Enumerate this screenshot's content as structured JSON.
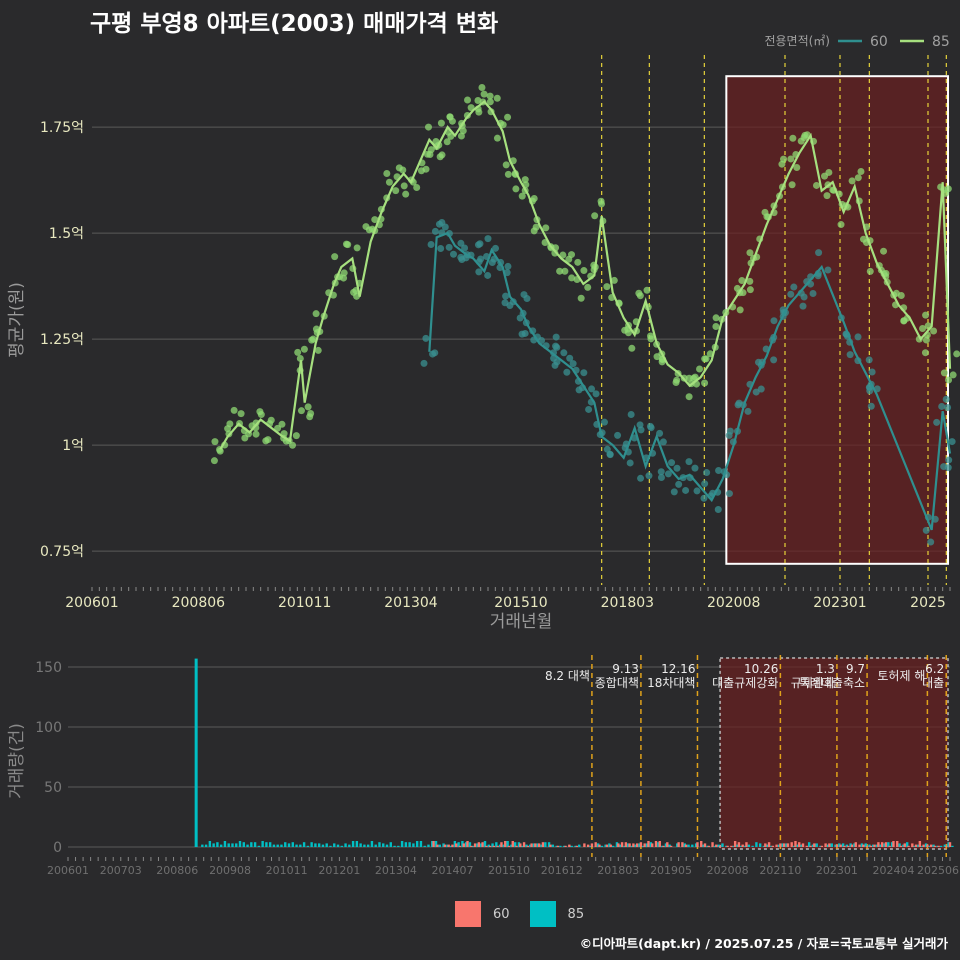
{
  "title": "구평 부영8 아파트(2003) 매매가격 변화",
  "footer": "©디아파트(dapt.kr) / 2025.07.25 / 자료=국토교통부 실거래가",
  "colors": {
    "background": "#2a2a2c",
    "series_60_line": "#2f8f8f",
    "series_60_point": "#3a9090",
    "series_85_line": "#a6e07f",
    "series_85_point": "#8fd973",
    "policy_line_top": "#e6d33a",
    "policy_line_bottom": "#e0a21b",
    "highlight_fill": "#6b1f1f",
    "vol_60": "#f8766d",
    "vol_85": "#00bfc4"
  },
  "chart_data": [
    {
      "type": "scatter",
      "title": "",
      "xlabel": "거래년월",
      "ylabel": "평균가(원)",
      "x_ticks": [
        "200601",
        "200806",
        "201011",
        "201304",
        "201510",
        "201803",
        "202008",
        "202301",
        "2025"
      ],
      "y_ticks": [
        {
          "value": 0.75,
          "label": "0.75억"
        },
        {
          "value": 1.0,
          "label": "1억"
        },
        {
          "value": 1.25,
          "label": "1.25억"
        },
        {
          "value": 1.5,
          "label": "1.5억"
        },
        {
          "value": 1.75,
          "label": "1.75억"
        }
      ],
      "ylim": [
        0.67,
        1.92
      ],
      "xlim": [
        "2006-01",
        "2025-07"
      ],
      "grid": true,
      "legend": {
        "title": "전용면적(㎡)",
        "position": "top-right",
        "entries": [
          {
            "name": "60",
            "color": "#2f8f8f"
          },
          {
            "name": "85",
            "color": "#a6e07f"
          }
        ]
      },
      "highlight": {
        "x0": "2020-06",
        "x1": "2025-07",
        "y0": 0.72,
        "y1": 1.87
      },
      "policy_dates": [
        "2017-08",
        "2018-09",
        "2019-12",
        "2021-10",
        "2023-01",
        "2023-09",
        "2025-01",
        "2025-06"
      ],
      "series": [
        {
          "name": "85",
          "x": [
            "2008-12",
            "2009-02",
            "2009-05",
            "2009-08",
            "2009-11",
            "2010-02",
            "2010-05",
            "2010-07",
            "2010-10",
            "2010-11",
            "2011-02",
            "2011-04",
            "2011-07",
            "2011-09",
            "2011-12",
            "2012-02",
            "2012-05",
            "2012-08",
            "2012-11",
            "2013-02",
            "2013-04",
            "2013-07",
            "2013-09",
            "2013-11",
            "2014-02",
            "2014-04",
            "2014-07",
            "2014-09",
            "2014-12",
            "2015-02",
            "2015-05",
            "2015-07",
            "2015-10",
            "2015-12",
            "2016-03",
            "2016-06",
            "2016-09",
            "2016-12",
            "2017-03",
            "2017-06",
            "2017-08",
            "2017-11",
            "2018-02",
            "2018-05",
            "2018-08",
            "2018-11",
            "2019-02",
            "2019-05",
            "2019-08",
            "2019-11",
            "2020-02",
            "2020-05",
            "2020-08",
            "2020-11",
            "2021-02",
            "2021-05",
            "2021-08",
            "2021-11",
            "2022-02",
            "2022-05",
            "2022-08",
            "2022-11",
            "2023-02",
            "2023-05",
            "2023-08",
            "2023-11",
            "2024-02",
            "2024-05",
            "2024-08",
            "2024-11",
            "2025-02",
            "2025-05",
            "2025-07"
          ],
          "y": [
            0.99,
            1.02,
            1.05,
            1.03,
            1.06,
            1.04,
            1.02,
            1.01,
            1.2,
            1.1,
            1.24,
            1.3,
            1.38,
            1.42,
            1.44,
            1.35,
            1.48,
            1.55,
            1.61,
            1.64,
            1.62,
            1.68,
            1.72,
            1.7,
            1.75,
            1.73,
            1.77,
            1.79,
            1.81,
            1.79,
            1.74,
            1.67,
            1.62,
            1.59,
            1.52,
            1.47,
            1.44,
            1.42,
            1.38,
            1.4,
            1.54,
            1.36,
            1.3,
            1.26,
            1.34,
            1.24,
            1.19,
            1.17,
            1.14,
            1.16,
            1.2,
            1.3,
            1.34,
            1.38,
            1.45,
            1.52,
            1.58,
            1.64,
            1.69,
            1.73,
            1.6,
            1.62,
            1.55,
            1.61,
            1.5,
            1.43,
            1.38,
            1.33,
            1.3,
            1.25,
            1.28,
            1.62,
            1.18
          ]
        },
        {
          "name": "60",
          "x": [
            "2013-09",
            "2013-11",
            "2014-02",
            "2014-04",
            "2014-07",
            "2014-09",
            "2014-12",
            "2015-02",
            "2015-05",
            "2015-07",
            "2015-10",
            "2015-12",
            "2016-03",
            "2016-06",
            "2016-09",
            "2016-12",
            "2017-03",
            "2017-06",
            "2017-08",
            "2017-11",
            "2018-02",
            "2018-05",
            "2018-08",
            "2018-11",
            "2019-02",
            "2019-05",
            "2019-08",
            "2019-11",
            "2020-02",
            "2020-05",
            "2020-08",
            "2020-11",
            "2021-02",
            "2021-05",
            "2021-08",
            "2021-11",
            "2022-02",
            "2022-05",
            "2022-08",
            "2023-02",
            "2023-05",
            "2023-08",
            "2023-11",
            "2025-02",
            "2025-05",
            "2025-07"
          ],
          "y": [
            1.22,
            1.49,
            1.5,
            1.47,
            1.45,
            1.44,
            1.41,
            1.46,
            1.42,
            1.35,
            1.32,
            1.28,
            1.24,
            1.22,
            1.2,
            1.18,
            1.14,
            1.1,
            1.02,
            1.0,
            0.97,
            1.04,
            0.95,
            1.02,
            0.95,
            0.92,
            0.93,
            0.9,
            0.87,
            0.92,
            1.0,
            1.1,
            1.16,
            1.21,
            1.28,
            1.33,
            1.36,
            1.39,
            1.42,
            1.29,
            1.22,
            1.17,
            1.12,
            0.8,
            1.08,
            0.98
          ]
        }
      ]
    },
    {
      "type": "bar",
      "title": "",
      "xlabel": "",
      "ylabel": "거래량(건)",
      "x_ticks": [
        "200601",
        "200703",
        "200806",
        "200908",
        "201011",
        "201201",
        "201304",
        "201407",
        "201510",
        "201612",
        "201803",
        "201905",
        "202008",
        "202110",
        "202301",
        "202404",
        "202506"
      ],
      "y_ticks": [
        0,
        50,
        100,
        150
      ],
      "ylim": [
        0,
        160
      ],
      "legend": {
        "position": "bottom",
        "entries": [
          {
            "name": "60",
            "color": "#f8766d"
          },
          {
            "name": "85",
            "color": "#00bfc4"
          }
        ]
      },
      "highlight": {
        "x0": "2020-06",
        "x1": "2025-07"
      },
      "policies": [
        {
          "date": "2017-08",
          "label": "8.2 대책"
        },
        {
          "date": "2018-09",
          "label": "9.13\n종합대책"
        },
        {
          "date": "2019-12",
          "label": "12.16\n18차대책"
        },
        {
          "date": "2021-10",
          "label": "10.26\n대출규제강화"
        },
        {
          "date": "2023-01",
          "label": "1.3\n규제완화"
        },
        {
          "date": "2023-09",
          "label": "9.7\n특례대출축소"
        },
        {
          "date": "2025-01",
          "label": "토허제 해"
        },
        {
          "date": "2025-06",
          "label": "6.2\n대출"
        }
      ],
      "series": [
        {
          "name": "85",
          "spikes": [
            {
              "x": "2008-11",
              "value": 157
            }
          ],
          "typical": 2
        },
        {
          "name": "60",
          "typical": 2
        }
      ]
    }
  ]
}
